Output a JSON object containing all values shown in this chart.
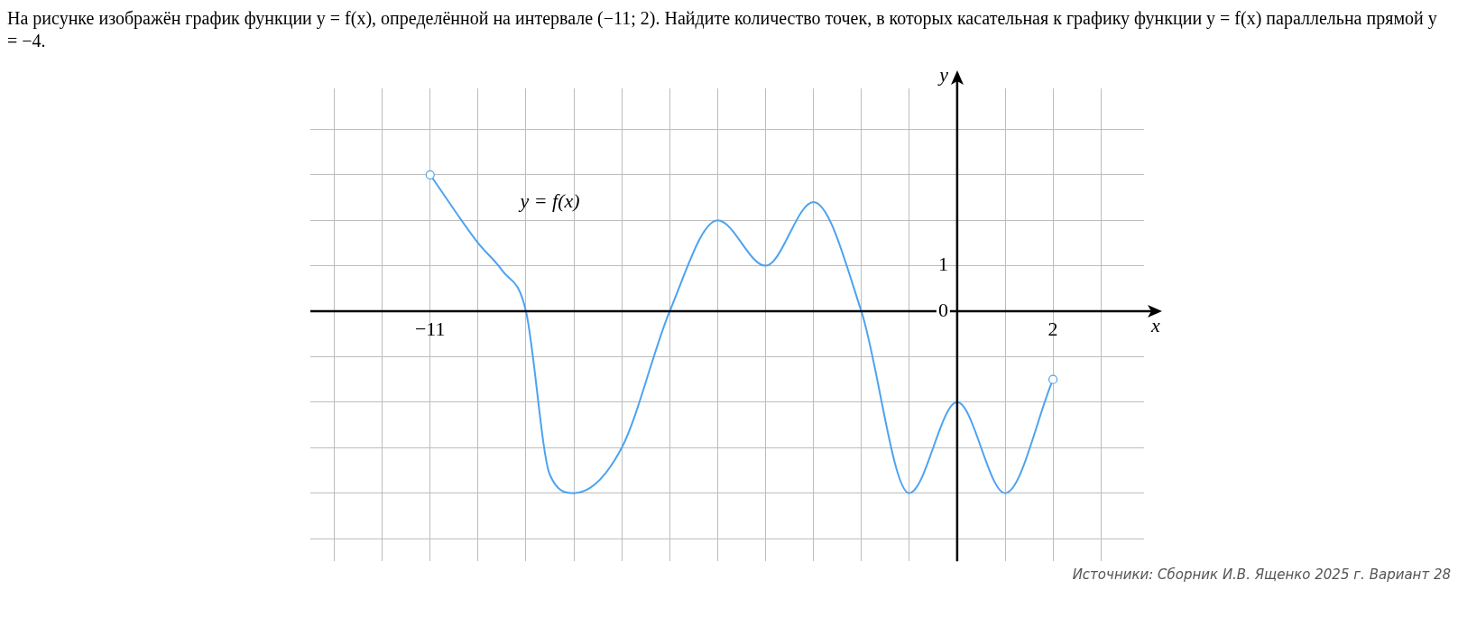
{
  "chart_data": {
    "type": "line",
    "title": "На рисунке изображён график функции y = f(x), определённой на интервале (−11; 2). Найдите количество точек, в которых касательная к графику функции y = f(x) параллельна прямой y = −4.",
    "xlabel": "x",
    "ylabel": "y",
    "x": [
      -11,
      -10,
      -9.5,
      -9,
      -8.5,
      -8,
      -7,
      -6,
      -5,
      -4,
      -3,
      -2,
      -1,
      0,
      1,
      2
    ],
    "series": [
      {
        "name": "y = f(x)",
        "color": "#4da3f0",
        "values": [
          3,
          1.5,
          0.9,
          0,
          -3.6,
          -4,
          -3,
          0,
          2,
          1,
          2.4,
          0,
          -4,
          -2,
          -4,
          -1.5
        ]
      },
      {
        "type": "scatter",
        "marker": "circle",
        "color": "#4da3f0",
        "x": [
          -11,
          2
        ],
        "values": [
          3,
          -1.5
        ]
      }
    ],
    "xlim": [
      -13.5,
      3.9
    ],
    "ylim": [
      -5.5,
      4.9
    ],
    "xticks": [
      {
        "value": -13,
        "label": null
      },
      {
        "value": -12,
        "label": null
      },
      {
        "value": -11,
        "label": "−11"
      },
      {
        "value": -10,
        "label": null
      },
      {
        "value": -9,
        "label": null
      },
      {
        "value": -8,
        "label": null
      },
      {
        "value": -7,
        "label": null
      },
      {
        "value": -6,
        "label": null
      },
      {
        "value": -5,
        "label": null
      },
      {
        "value": -4,
        "label": null
      },
      {
        "value": -3,
        "label": null
      },
      {
        "value": -2,
        "label": null
      },
      {
        "value": -1,
        "label": null
      },
      {
        "value": 0,
        "label": null
      },
      {
        "value": 1,
        "label": null
      },
      {
        "value": 2,
        "label": "2"
      },
      {
        "value": 3,
        "label": null
      }
    ],
    "yticks": [
      {
        "value": -5,
        "label": null
      },
      {
        "value": -4,
        "label": null
      },
      {
        "value": -3,
        "label": null
      },
      {
        "value": -2,
        "label": null
      },
      {
        "value": -1,
        "label": null
      },
      {
        "value": 0,
        "label": "0"
      },
      {
        "value": 1,
        "label": "1"
      },
      {
        "value": 2,
        "label": null
      },
      {
        "value": 3,
        "label": null
      },
      {
        "value": 4,
        "label": null
      }
    ],
    "grid": true,
    "legend": false,
    "annotations": [
      "Источники: Сборник И.В. Ященко 2025 г. Вариант 28"
    ]
  }
}
